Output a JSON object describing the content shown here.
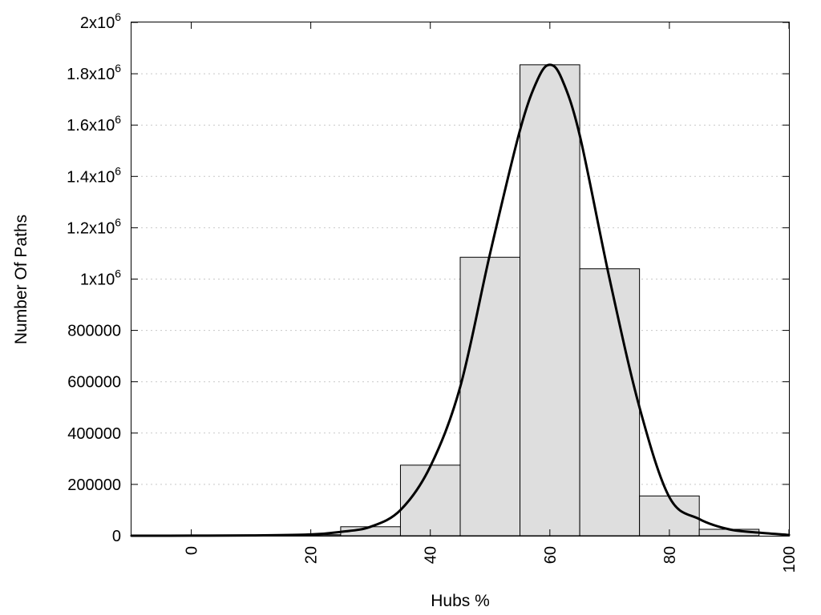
{
  "chart_data": {
    "type": "bar",
    "title": "",
    "xlabel": "Hubs %",
    "ylabel": "Number Of Paths",
    "xlim": [
      -10,
      100
    ],
    "ylim": [
      0,
      2000000
    ],
    "x_ticks": [
      {
        "value": 0,
        "label": "0"
      },
      {
        "value": 20,
        "label": "20"
      },
      {
        "value": 40,
        "label": "40"
      },
      {
        "value": 60,
        "label": "60"
      },
      {
        "value": 80,
        "label": "80"
      },
      {
        "value": 100,
        "label": "100"
      }
    ],
    "y_ticks": [
      {
        "value": 0,
        "label": "0"
      },
      {
        "value": 200000,
        "label": "200000"
      },
      {
        "value": 400000,
        "label": "400000"
      },
      {
        "value": 600000,
        "label": "600000"
      },
      {
        "value": 800000,
        "label": "800000"
      },
      {
        "value": 1000000,
        "label": "1x10",
        "exp": "6"
      },
      {
        "value": 1200000,
        "label": "1.2x10",
        "exp": "6"
      },
      {
        "value": 1400000,
        "label": "1.4x10",
        "exp": "6"
      },
      {
        "value": 1600000,
        "label": "1.6x10",
        "exp": "6"
      },
      {
        "value": 1800000,
        "label": "1.8x10",
        "exp": "6"
      },
      {
        "value": 2000000,
        "label": "2x10",
        "exp": "6"
      }
    ],
    "grid": true,
    "bars": {
      "bin_width": 10,
      "bin_centers": [
        0,
        10,
        20,
        30,
        40,
        50,
        60,
        70,
        80,
        90
      ],
      "values": [
        1000,
        1500,
        4000,
        35000,
        275000,
        1085000,
        1835000,
        1040000,
        155000,
        25000
      ],
      "color": "#dedede"
    },
    "curve": {
      "x": [
        -10,
        0,
        10,
        20,
        25,
        30,
        35,
        40,
        45,
        50,
        55,
        58,
        60,
        62,
        65,
        70,
        75,
        80,
        85,
        90,
        95,
        100
      ],
      "y": [
        0,
        200,
        1000,
        5000,
        15000,
        35000,
        100000,
        270000,
        580000,
        1100000,
        1580000,
        1780000,
        1835000,
        1780000,
        1560000,
        1000000,
        500000,
        150000,
        65000,
        25000,
        12000,
        3000
      ],
      "color": "#000000"
    }
  }
}
